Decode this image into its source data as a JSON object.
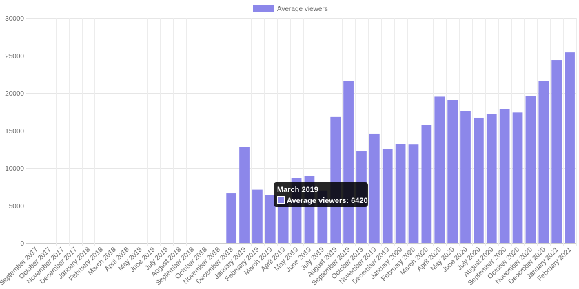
{
  "chart_data": {
    "type": "bar",
    "legend_position": "top",
    "grid": true,
    "ylim": [
      0,
      30000
    ],
    "y_ticks": [
      0,
      5000,
      10000,
      15000,
      20000,
      25000,
      30000
    ],
    "categories": [
      "September 2017",
      "October 2017",
      "November 2017",
      "December 2017",
      "January 2018",
      "February 2018",
      "March 2018",
      "April 2018",
      "May 2018",
      "June 2018",
      "July 2018",
      "August 2018",
      "September 2018",
      "October 2018",
      "November 2018",
      "December 2018",
      "January 2019",
      "February 2019",
      "March 2019",
      "April 2019",
      "May 2019",
      "June 2019",
      "July 2019",
      "August 2019",
      "September 2019",
      "October 2019",
      "November 2019",
      "December 2019",
      "January 2020",
      "February 2020",
      "March 2020",
      "April 2020",
      "May 2020",
      "June 2020",
      "July 2020",
      "August 2020",
      "September 2020",
      "October 2020",
      "November 2020",
      "December 2020",
      "January 2021",
      "February 2021"
    ],
    "series": [
      {
        "name": "Average viewers",
        "color": "#8c87ea",
        "values": [
          0,
          0,
          0,
          0,
          0,
          0,
          0,
          0,
          0,
          0,
          0,
          0,
          0,
          0,
          0,
          6600,
          12800,
          7100,
          6420,
          5800,
          8650,
          8900,
          7000,
          16800,
          21600,
          12200,
          14500,
          12500,
          13200,
          13100,
          15700,
          19500,
          19000,
          17600,
          16700,
          17200,
          17800,
          17400,
          19600,
          21600,
          24400,
          25400
        ]
      }
    ],
    "tooltip": {
      "title": "March 2019",
      "label": "Average viewers: 6420",
      "color": "#8c87ea"
    }
  }
}
